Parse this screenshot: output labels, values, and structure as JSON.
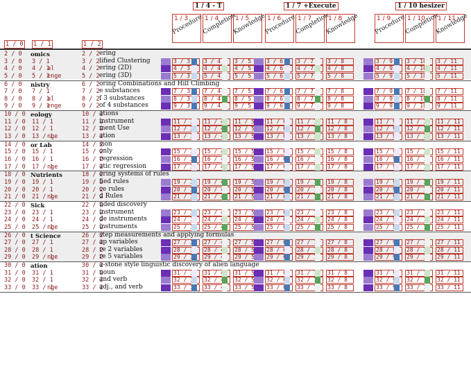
{
  "colors": {
    "purple_dark": "#6a2fb5",
    "purple_light": "#c9b3e6",
    "green": "#5aa35a",
    "blue": "#4a78b5",
    "red": "#b71c1c"
  },
  "groups": [
    {
      "title": "1 / 4 - T",
      "cols": [
        {
          "id": "1 / 3",
          "label": "Procedure"
        },
        {
          "id": "1 / 4",
          "label": "Completion"
        },
        {
          "id": "1 / 5",
          "label": "Knowledge"
        }
      ]
    },
    {
      "title": "1 / 7 +Execute",
      "cols": [
        {
          "id": "1 / 6",
          "label": "Procedure"
        },
        {
          "id": "1 / 7",
          "label": "Completion"
        },
        {
          "id": "1 / 8",
          "label": "Knowledge"
        }
      ]
    },
    {
      "title": "1 / 10 hesizer",
      "cols": [
        {
          "id": "1 / 9",
          "label": "Procedure"
        },
        {
          "id": "1 / 10",
          "label": "Completion"
        },
        {
          "id": "1 / 11",
          "label": "Knowledge"
        }
      ]
    }
  ],
  "header_row": {
    "col0": "1 / 0",
    "col1": "1 / 1",
    "col2": "1 / 2"
  },
  "domains": [
    {
      "name": "omics",
      "rows": [
        {
          "n": 2,
          "desc": "ering",
          "tag": ""
        },
        {
          "n": 3,
          "desc": "lified Clustering",
          "tag": ""
        },
        {
          "n": 4,
          "desc": "ering (2D)",
          "tag": "al"
        },
        {
          "n": 5,
          "desc": "ering (3D)",
          "tag": "enge"
        }
      ]
    },
    {
      "name": "nistry",
      "rows": [
        {
          "n": 6,
          "desc": "oring Combinations and Hill Climbing",
          "tag": ""
        },
        {
          "n": 7,
          "desc": "e substances",
          "tag": ""
        },
        {
          "n": 8,
          "desc": "f 3 substances",
          "tag": "al"
        },
        {
          "n": 9,
          "desc": "of 4 substances",
          "tag": "enge"
        }
      ]
    },
    {
      "name": "eology",
      "rows": [
        {
          "n": 10,
          "desc": "ations",
          "tag": ""
        },
        {
          "n": 11,
          "desc": "instrument",
          "tag": ""
        },
        {
          "n": 12,
          "desc": "ment Use",
          "tag": ""
        },
        {
          "n": 13,
          "desc": "ation",
          "tag": "nge"
        }
      ]
    },
    {
      "name": "or Lab",
      "rows": [
        {
          "n": 14,
          "desc": "sion",
          "tag": ""
        },
        {
          "n": 15,
          "desc": "only",
          "tag": ""
        },
        {
          "n": 16,
          "desc": "regression",
          "tag": ""
        },
        {
          "n": 17,
          "desc": "atic regression",
          "tag": "nge"
        }
      ]
    },
    {
      "name": "Nutrients",
      "rows": [
        {
          "n": 18,
          "desc": "ering systems of rules",
          "tag": ""
        },
        {
          "n": 19,
          "desc": "fied rules",
          "tag": ""
        },
        {
          "n": 20,
          "desc": "ce rules",
          "tag": ""
        },
        {
          "n": 21,
          "desc": "d Rules",
          "tag": "nge"
        }
      ]
    },
    {
      "name": "Sick",
      "rows": [
        {
          "n": 22,
          "desc": "nded discovery",
          "tag": ""
        },
        {
          "n": 23,
          "desc": "instrument",
          "tag": ""
        },
        {
          "n": 24,
          "desc": "de instruments",
          "tag": ""
        },
        {
          "n": 25,
          "desc": "instruments",
          "tag": "nge"
        }
      ]
    },
    {
      "name": "t Science",
      "rows": [
        {
          "n": 26,
          "desc": "step measurements and applying formulas",
          "tag": ""
        },
        {
          "n": 27,
          "desc": "ap variables",
          "tag": ""
        },
        {
          "n": 28,
          "desc": "re 2 variables",
          "tag": ""
        },
        {
          "n": 29,
          "desc": "re 5 variables",
          "tag": "nge"
        }
      ]
    },
    {
      "name": "ation",
      "rows": [
        {
          "n": 30,
          "desc": "a-stone style linguistic discovery of alien language",
          "tag": ""
        },
        {
          "n": 31,
          "desc": "noun",
          "tag": ""
        },
        {
          "n": 32,
          "desc": "and verb",
          "tag": ""
        },
        {
          "n": 33,
          "desc": "adj., and verb",
          "tag": "nge"
        }
      ]
    }
  ]
}
